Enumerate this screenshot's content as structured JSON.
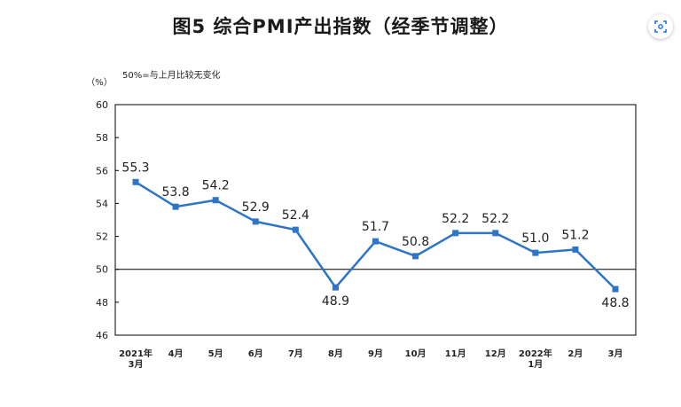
{
  "page": {
    "title": "图5 综合PMI产出指数（经季节调整）"
  },
  "chart_data": {
    "type": "line",
    "title": "图5 综合PMI产出指数（经季节调整）",
    "ylabel": "（%）",
    "annotation": "50%=与上月比较无变化",
    "ylim": [
      46,
      60
    ],
    "yticks": [
      46,
      48,
      50,
      52,
      54,
      56,
      58,
      60
    ],
    "reference_line": 50,
    "grid": false,
    "categories": [
      "2021年\n3月",
      "4月",
      "5月",
      "6月",
      "7月",
      "8月",
      "9月",
      "10月",
      "11月",
      "12月",
      "2022年\n1月",
      "2月",
      "3月"
    ],
    "series": [
      {
        "values": [
          55.3,
          53.8,
          54.2,
          52.9,
          52.4,
          48.9,
          51.7,
          50.8,
          52.2,
          52.2,
          51.0,
          51.2,
          48.8
        ],
        "labels": [
          "55.3",
          "53.8",
          "54.2",
          "52.9",
          "52.4",
          "48.9",
          "51.7",
          "50.8",
          "52.2",
          "52.2",
          "51.0",
          "51.2",
          "48.8"
        ],
        "color": "#2e75c8"
      }
    ]
  },
  "ui": {
    "corner_button_icon": "lens-scan-icon"
  }
}
